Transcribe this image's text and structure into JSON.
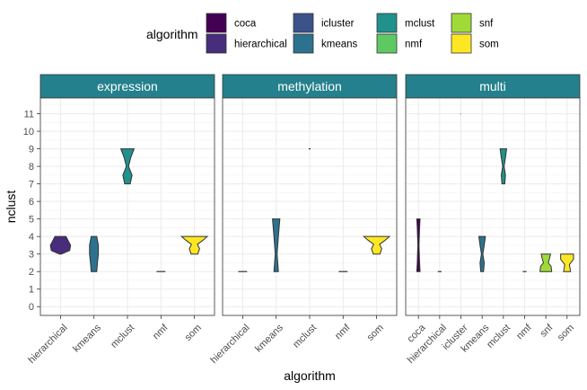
{
  "chart_data": {
    "type": "violin",
    "xlabel": "algorithm",
    "ylabel": "nclust",
    "ylim": [
      0,
      11
    ],
    "yticks": [
      0,
      1,
      2,
      3,
      4,
      5,
      6,
      7,
      8,
      9,
      10,
      11
    ],
    "grid": true,
    "legend": {
      "title": "algorithm",
      "placement": "top",
      "entries": [
        {
          "name": "coca",
          "color": "#440154"
        },
        {
          "name": "hierarchical",
          "color": "#472d7b"
        },
        {
          "name": "icluster",
          "color": "#3b528b"
        },
        {
          "name": "kmeans",
          "color": "#2c728e"
        },
        {
          "name": "mclust",
          "color": "#21918c"
        },
        {
          "name": "nmf",
          "color": "#5ec962"
        },
        {
          "name": "snf",
          "color": "#a0da39"
        },
        {
          "name": "som",
          "color": "#fde725"
        }
      ]
    },
    "facets": [
      {
        "label": "expression",
        "categories": [
          "hierarchical",
          "kmeans",
          "mclust",
          "nmf",
          "som"
        ],
        "violins": [
          {
            "algorithm": "hierarchical",
            "shape": [
              [
                3,
                0.05
              ],
              [
                3.2,
                0.5
              ],
              [
                3.5,
                0.55
              ],
              [
                3.8,
                0.4
              ],
              [
                4,
                0.3
              ]
            ]
          },
          {
            "algorithm": "kmeans",
            "shape": [
              [
                2,
                0.15
              ],
              [
                2.5,
                0.19
              ],
              [
                3,
                0.24
              ],
              [
                3.5,
                0.24
              ],
              [
                4,
                0.15
              ]
            ]
          },
          {
            "algorithm": "mclust",
            "shape": [
              [
                7,
                0.15
              ],
              [
                7.5,
                0.25
              ],
              [
                8,
                0.06
              ],
              [
                8.5,
                0.18
              ],
              [
                9,
                0.36
              ]
            ]
          },
          {
            "algorithm": "nmf",
            "shape": [
              [
                2,
                0.24
              ]
            ]
          },
          {
            "algorithm": "som",
            "shape": [
              [
                3,
                0.18
              ],
              [
                3.3,
                0.28
              ],
              [
                3.55,
                0.16
              ],
              [
                3.8,
                0.48
              ],
              [
                4,
                0.7
              ]
            ]
          }
        ]
      },
      {
        "label": "methylation",
        "categories": [
          "hierarchical",
          "kmeans",
          "mclust",
          "nmf",
          "som"
        ],
        "violins": [
          {
            "algorithm": "hierarchical",
            "shape": [
              [
                2,
                0.24
              ]
            ]
          },
          {
            "algorithm": "kmeans",
            "shape": [
              [
                2,
                0.12
              ],
              [
                3,
                0.05
              ],
              [
                4,
                0.12
              ],
              [
                5,
                0.2
              ]
            ]
          },
          {
            "algorithm": "mclust",
            "shape": [
              [
                9,
                0.05
              ]
            ]
          },
          {
            "algorithm": "nmf",
            "shape": [
              [
                2,
                0.24
              ]
            ]
          },
          {
            "algorithm": "som",
            "shape": [
              [
                3,
                0.18
              ],
              [
                3.3,
                0.28
              ],
              [
                3.55,
                0.16
              ],
              [
                3.8,
                0.48
              ],
              [
                4,
                0.7
              ]
            ]
          }
        ]
      },
      {
        "label": "multi",
        "categories": [
          "coca",
          "hierarchical",
          "icluster",
          "kmeans",
          "mclust",
          "nmf",
          "snf",
          "som"
        ],
        "violins": [
          {
            "algorithm": "coca",
            "shape": [
              [
                2,
                0.14
              ],
              [
                2.5,
                0.1
              ],
              [
                3.5,
                0.05
              ],
              [
                4.5,
                0.1
              ],
              [
                5,
                0.14
              ]
            ]
          },
          {
            "algorithm": "hierarchical",
            "shape": [
              [
                2,
                0.16
              ]
            ]
          },
          {
            "algorithm": "icluster",
            "shape": [
              [
                11,
                0.02
              ]
            ]
          },
          {
            "algorithm": "kmeans",
            "shape": [
              [
                2,
                0.12
              ],
              [
                2.5,
                0.18
              ],
              [
                3,
                0.06
              ],
              [
                3.5,
                0.18
              ],
              [
                4,
                0.28
              ]
            ]
          },
          {
            "algorithm": "mclust",
            "shape": [
              [
                7,
                0.12
              ],
              [
                7.5,
                0.18
              ],
              [
                8,
                0.06
              ],
              [
                8.5,
                0.18
              ],
              [
                9,
                0.28
              ]
            ]
          },
          {
            "algorithm": "nmf",
            "shape": [
              [
                2,
                0.16
              ]
            ]
          },
          {
            "algorithm": "snf",
            "shape": [
              [
                2,
                0.5
              ],
              [
                2.3,
                0.45
              ],
              [
                2.5,
                0.2
              ],
              [
                2.7,
                0.3
              ],
              [
                3,
                0.4
              ]
            ]
          },
          {
            "algorithm": "som",
            "shape": [
              [
                2,
                0.3
              ],
              [
                2.4,
                0.2
              ],
              [
                2.7,
                0.55
              ],
              [
                3,
                0.55
              ]
            ]
          }
        ]
      }
    ]
  }
}
